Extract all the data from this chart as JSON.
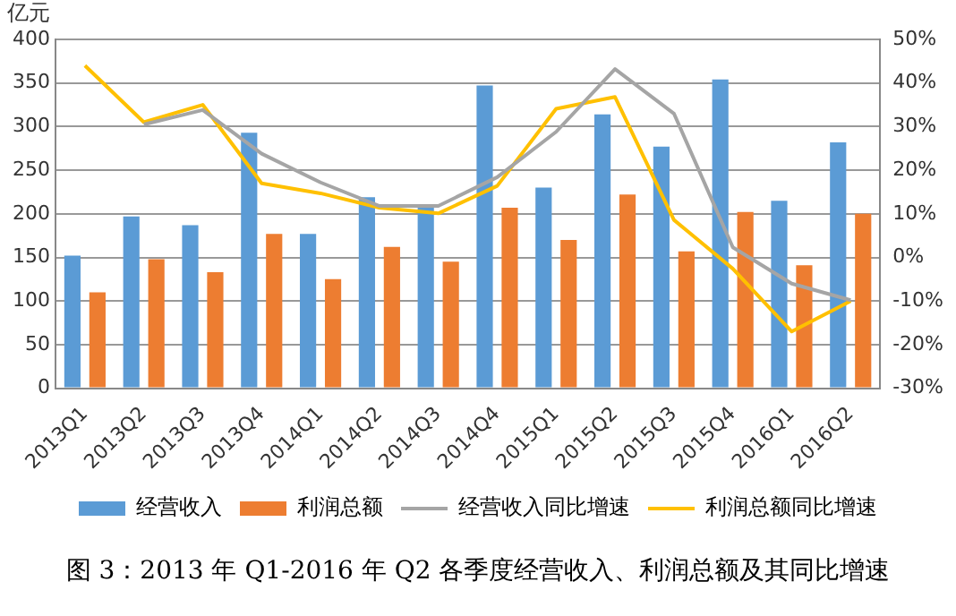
{
  "chart_data": {
    "type": "bar",
    "title": "图 3：2013 年 Q1-2016 年 Q2 各季度经营收入、利润总额及其同比增速",
    "ylabel": "亿元",
    "categories": [
      "2013Q1",
      "2013Q2",
      "2013Q3",
      "2013Q4",
      "2014Q1",
      "2014Q2",
      "2014Q3",
      "2014Q4",
      "2015Q1",
      "2015Q2",
      "2015Q3",
      "2015Q4",
      "2016Q1",
      "2016Q2"
    ],
    "series": [
      {
        "name": "经营收入",
        "color": "#5b9bd5",
        "values": [
          152,
          197,
          187,
          293,
          177,
          219,
          208,
          347,
          230,
          314,
          277,
          354,
          215,
          282
        ]
      },
      {
        "name": "利润总额",
        "color": "#ed7d31",
        "values": [
          110,
          148,
          133,
          177,
          125,
          162,
          145,
          207,
          170,
          222,
          157,
          202,
          141,
          200
        ]
      },
      {
        "name": "经营收入同比增速",
        "type": "line",
        "axis": "y2",
        "color": "#a5a5a5",
        "values": [
          null,
          30.5,
          33.8,
          23.8,
          17.2,
          11.8,
          11.8,
          18.4,
          28.8,
          43.2,
          33,
          2.3,
          -6,
          -9.8
        ]
      },
      {
        "name": "利润总额同比增速",
        "type": "line",
        "axis": "y2",
        "color": "#ffc000",
        "values": [
          44,
          31,
          35,
          17,
          14.7,
          11.4,
          10.1,
          16.4,
          34.1,
          36.8,
          8.6,
          -2.6,
          -17,
          -10
        ]
      }
    ],
    "ylim": [
      0,
      400
    ],
    "yticks": [
      0,
      50,
      100,
      150,
      200,
      250,
      300,
      350,
      400
    ],
    "y2lim": [
      -30,
      50
    ],
    "y2ticks": [
      {
        "value": -30,
        "label": "-30%"
      },
      {
        "value": -20,
        "label": "-20%"
      },
      {
        "value": -10,
        "label": "-10%"
      },
      {
        "value": 0,
        "label": "0%"
      },
      {
        "value": 10,
        "label": "10%"
      },
      {
        "value": 20,
        "label": "20%"
      },
      {
        "value": 30,
        "label": "30%"
      },
      {
        "value": 40,
        "label": "40%"
      },
      {
        "value": 50,
        "label": "50%"
      }
    ],
    "grid": "y",
    "legend": "bottom",
    "marker": "none",
    "line_style": "solid"
  }
}
